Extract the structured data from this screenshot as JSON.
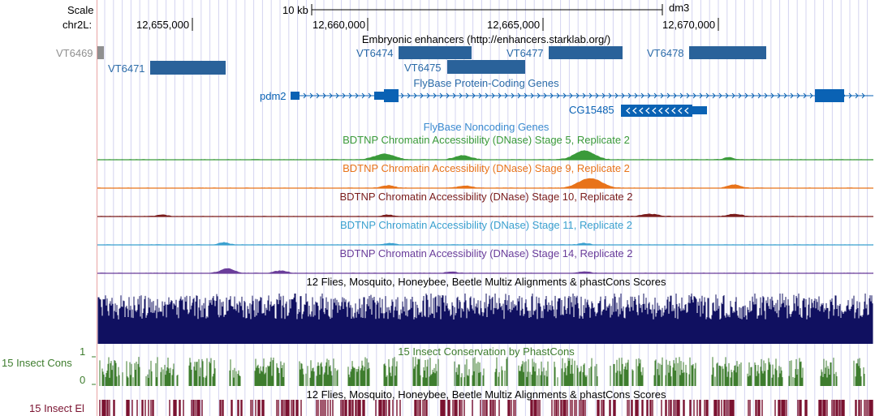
{
  "ruler": {
    "scale_label": "Scale",
    "chrom_label": "chr2L:",
    "scale_bar_text": "10 kb",
    "assembly": "dm3",
    "ticks": [
      "12,655,000",
      "12,660,000",
      "12,665,000",
      "12,670,000"
    ]
  },
  "tracks": {
    "enhancers": {
      "title": "Embryonic enhancers (http://enhancers.starklab.org/)",
      "items": [
        "VT6469",
        "VT6471",
        "VT6474",
        "VT6475",
        "VT6477",
        "VT6478"
      ]
    },
    "protein_coding": {
      "title": "FlyBase Protein-Coding Genes",
      "genes": [
        "pdm2",
        "CG15485"
      ]
    },
    "noncoding": {
      "title": "FlyBase Noncoding Genes"
    },
    "dnase": [
      {
        "title": "BDTNP Chromatin Accessibility (DNase) Stage 5, Replicate 2",
        "color": "#3a9a3a"
      },
      {
        "title": "BDTNP Chromatin Accessibility (DNase) Stage 9, Replicate 2",
        "color": "#e8731a"
      },
      {
        "title": "BDTNP Chromatin Accessibility (DNase) Stage 10, Replicate 2",
        "color": "#7a1c1c"
      },
      {
        "title": "BDTNP Chromatin Accessibility (DNase) Stage 11, Replicate 2",
        "color": "#3aa0cf"
      },
      {
        "title": "BDTNP Chromatin Accessibility (DNase) Stage 14, Replicate 2",
        "color": "#6a3d9a"
      }
    ],
    "multiz": {
      "title": "12 Flies, Mosquito, Honeybee, Beetle Multiz Alignments & phastCons Scores",
      "color": "#101060"
    },
    "phastcons": {
      "title": "15 Insect Conservation by PhastCons",
      "side_label": "15 Insect Cons",
      "axis_max": "1",
      "axis_min": "0",
      "color": "#3e7d2e"
    },
    "elements": {
      "title": "12 Flies, Mosquito, Honeybee, Beetle Multiz Alignments & phastCons Scores",
      "side_label": "15 Insect El",
      "color": "#7a1230"
    }
  },
  "colors": {
    "feature_blue": "#2a629a",
    "gene_blue": "#0a62b4",
    "label_blue": "#2a6aa8",
    "noncoding_blue": "#3a8ad0",
    "gridline": "#d4d4f0",
    "guide_red": "#e8a3a3"
  }
}
